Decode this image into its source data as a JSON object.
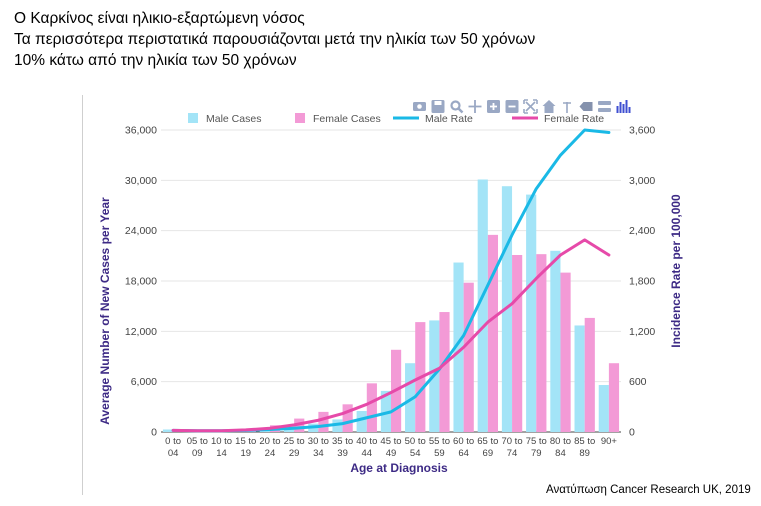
{
  "headline": {
    "line1": "Ο Καρκίνος είναι ηλικιο-εξαρτώμενη νόσος",
    "line2": "Τα περισσότερα περιστατικά παρουσιάζονται μετά την ηλικία των 50 χρόνων",
    "line3": "10% κάτω από την ηλικία των 50 χρόνων"
  },
  "footnote": "Ανατύπωση Cancer Research UK, 2019",
  "toolbar_icons": [
    "camera-icon",
    "save-icon",
    "zoom-icon",
    "pan-icon",
    "zoom-in-icon",
    "zoom-out-icon",
    "autoscale-icon",
    "reset-axes-icon",
    "spike-lines-icon",
    "hover-closest-icon",
    "hover-compare-icon",
    "plotly-logo-icon"
  ],
  "chart_data": {
    "type": "bar",
    "title": "",
    "xlabel": "Age at Diagnosis",
    "ylabel": "Average Number of New Cases per Year",
    "y2label": "Incidence Rate per 100,000",
    "ylim": [
      0,
      36000
    ],
    "y2lim": [
      0,
      3600
    ],
    "yticks": [
      "0",
      "6,000",
      "12,000",
      "18,000",
      "24,000",
      "30,000",
      "36,000"
    ],
    "y2ticks": [
      "0",
      "600",
      "1,200",
      "1,800",
      "2,400",
      "3,000",
      "3,600"
    ],
    "grid": true,
    "legend_position": "top",
    "categories": [
      [
        "0 to",
        "04"
      ],
      [
        "05 to",
        "09"
      ],
      [
        "10 to",
        "14"
      ],
      [
        "15 to",
        "19"
      ],
      [
        "20 to",
        "24"
      ],
      [
        "25 to",
        "29"
      ],
      [
        "30 to",
        "34"
      ],
      [
        "35 to",
        "39"
      ],
      [
        "40 to",
        "44"
      ],
      [
        "45 to",
        "49"
      ],
      [
        "50 to",
        "54"
      ],
      [
        "55 to",
        "59"
      ],
      [
        "60 to",
        "64"
      ],
      [
        "65 to",
        "69"
      ],
      [
        "70 to",
        "74"
      ],
      [
        "75 to",
        "79"
      ],
      [
        "80 to",
        "84"
      ],
      [
        "85 to",
        "89"
      ],
      [
        "90+",
        ""
      ]
    ],
    "series": [
      {
        "name": "Male Cases",
        "kind": "bar",
        "axis": "left",
        "color": "#a3e4f7",
        "values": [
          300,
          200,
          200,
          300,
          500,
          700,
          1000,
          1500,
          2500,
          4900,
          8200,
          13300,
          20200,
          30100,
          29300,
          28300,
          21600,
          12700,
          5600
        ]
      },
      {
        "name": "Female Cases",
        "kind": "bar",
        "axis": "left",
        "color": "#f39ad6",
        "values": [
          300,
          200,
          200,
          400,
          800,
          1600,
          2400,
          3300,
          5800,
          9800,
          13100,
          14300,
          17800,
          23500,
          21100,
          21200,
          19000,
          13600,
          8200
        ]
      },
      {
        "name": "Male Rate",
        "kind": "line",
        "axis": "right",
        "color": "#1ab9e6",
        "values": [
          20,
          15,
          15,
          20,
          30,
          45,
          65,
          100,
          170,
          240,
          420,
          750,
          1150,
          1750,
          2350,
          2900,
          3300,
          3600,
          3570
        ]
      },
      {
        "name": "Female Rate",
        "kind": "line",
        "axis": "right",
        "color": "#e64aa9",
        "values": [
          20,
          15,
          15,
          25,
          45,
          85,
          140,
          220,
          330,
          470,
          620,
          760,
          1010,
          1310,
          1530,
          1830,
          2110,
          2290,
          2110
        ]
      }
    ]
  }
}
